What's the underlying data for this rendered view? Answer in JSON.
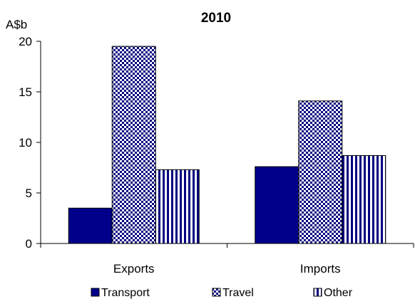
{
  "chart_data": {
    "type": "bar",
    "title": "2010",
    "ylabel": "A$b",
    "xlabel": "",
    "categories": [
      "Exports",
      "Imports"
    ],
    "ylim": [
      0,
      20
    ],
    "yticks": [
      "0",
      "5",
      "10",
      "15",
      "20"
    ],
    "grid": false,
    "legend_position": "bottom",
    "series": [
      {
        "name": "Transport",
        "values": [
          3.5,
          7.6
        ],
        "color": "#00008b",
        "pattern": "solid"
      },
      {
        "name": "Travel",
        "values": [
          19.5,
          14.1
        ],
        "color": "#000080",
        "pattern": "checkerboard"
      },
      {
        "name": "Other",
        "values": [
          7.3,
          8.7
        ],
        "color": "#000080",
        "pattern": "vertical-stripes"
      }
    ]
  }
}
